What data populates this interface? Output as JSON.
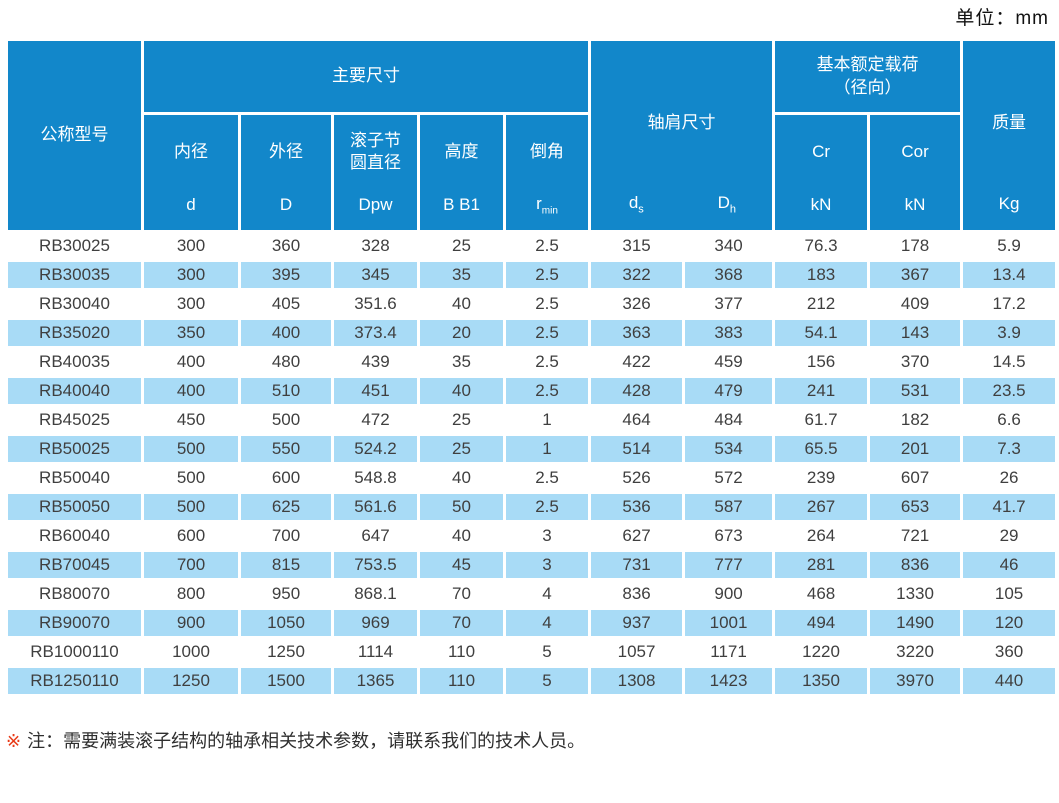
{
  "unit_label": "单位：mm",
  "colors": {
    "header_blue": "#1287ca",
    "stripe_blue": "#a8dbf6",
    "note_red": "#e83a17"
  },
  "table": {
    "header": {
      "model": "公称型号",
      "main_dims": "主要尺寸",
      "shoulder_dims": "轴肩尺寸",
      "load_rating_line1": "基本额定载荷",
      "load_rating_line2": "（径向）",
      "mass": "质量",
      "sub": {
        "bore": "内径",
        "outer": "外径",
        "pitch_line1": "滚子节",
        "pitch_line2": "圆直径",
        "height": "高度",
        "chamfer": "倒角",
        "cr": "Cr",
        "cor": "Cor"
      },
      "symbols": {
        "d": "d",
        "D": "D",
        "dpw": "Dpw",
        "b_b1": "B B1",
        "r_base": "r",
        "r_sub": "min",
        "ds_base": "d",
        "ds_sub": "s",
        "dh_base": "D",
        "dh_sub": "h",
        "kn_cr": "kN",
        "kn_cor": "kN",
        "kg": "Kg"
      }
    },
    "rows": [
      [
        "RB30025",
        "300",
        "360",
        "328",
        "25",
        "2.5",
        "315",
        "340",
        "76.3",
        "178",
        "5.9"
      ],
      [
        "RB30035",
        "300",
        "395",
        "345",
        "35",
        "2.5",
        "322",
        "368",
        "183",
        "367",
        "13.4"
      ],
      [
        "RB30040",
        "300",
        "405",
        "351.6",
        "40",
        "2.5",
        "326",
        "377",
        "212",
        "409",
        "17.2"
      ],
      [
        "RB35020",
        "350",
        "400",
        "373.4",
        "20",
        "2.5",
        "363",
        "383",
        "54.1",
        "143",
        "3.9"
      ],
      [
        "RB40035",
        "400",
        "480",
        "439",
        "35",
        "2.5",
        "422",
        "459",
        "156",
        "370",
        "14.5"
      ],
      [
        "RB40040",
        "400",
        "510",
        "451",
        "40",
        "2.5",
        "428",
        "479",
        "241",
        "531",
        "23.5"
      ],
      [
        "RB45025",
        "450",
        "500",
        "472",
        "25",
        "1",
        "464",
        "484",
        "61.7",
        "182",
        "6.6"
      ],
      [
        "RB50025",
        "500",
        "550",
        "524.2",
        "25",
        "1",
        "514",
        "534",
        "65.5",
        "201",
        "7.3"
      ],
      [
        "RB50040",
        "500",
        "600",
        "548.8",
        "40",
        "2.5",
        "526",
        "572",
        "239",
        "607",
        "26"
      ],
      [
        "RB50050",
        "500",
        "625",
        "561.6",
        "50",
        "2.5",
        "536",
        "587",
        "267",
        "653",
        "41.7"
      ],
      [
        "RB60040",
        "600",
        "700",
        "647",
        "40",
        "3",
        "627",
        "673",
        "264",
        "721",
        "29"
      ],
      [
        "RB70045",
        "700",
        "815",
        "753.5",
        "45",
        "3",
        "731",
        "777",
        "281",
        "836",
        "46"
      ],
      [
        "RB80070",
        "800",
        "950",
        "868.1",
        "70",
        "4",
        "836",
        "900",
        "468",
        "1330",
        "105"
      ],
      [
        "RB90070",
        "900",
        "1050",
        "969",
        "70",
        "4",
        "937",
        "1001",
        "494",
        "1490",
        "120"
      ],
      [
        "RB1000110",
        "1000",
        "1250",
        "1114",
        "110",
        "5",
        "1057",
        "1171",
        "1220",
        "3220",
        "360"
      ],
      [
        "RB1250110",
        "1250",
        "1500",
        "1365",
        "110",
        "5",
        "1308",
        "1423",
        "1350",
        "3970",
        "440"
      ]
    ]
  },
  "note": {
    "marker": "※",
    "text": "注：需要满装滚子结构的轴承相关技术参数，请联系我们的技术人员。"
  }
}
